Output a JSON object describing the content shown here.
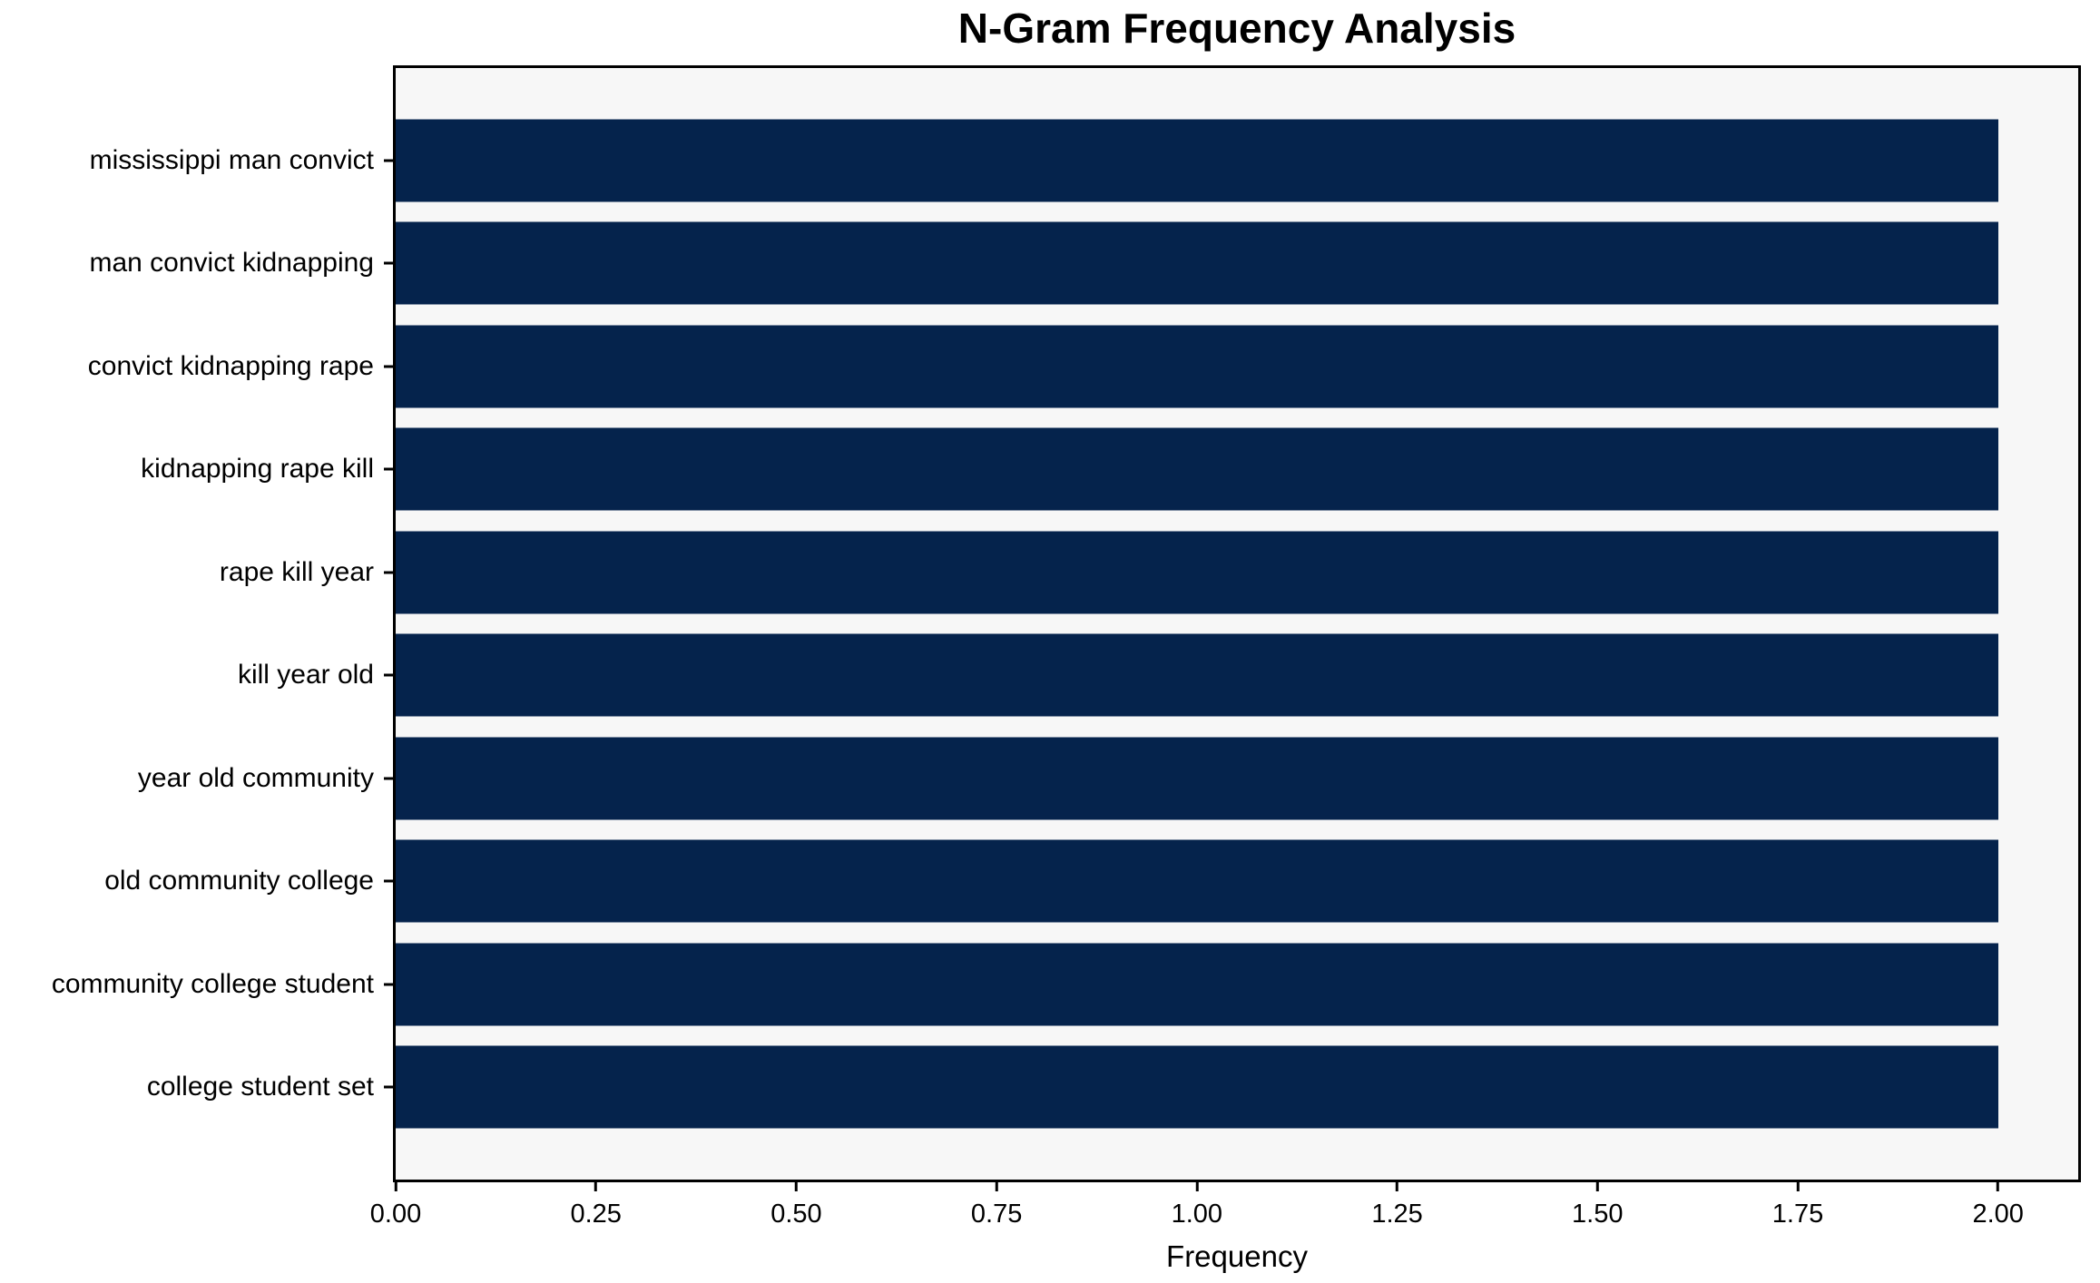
{
  "chart_data": {
    "type": "bar",
    "orientation": "horizontal",
    "title": "N-Gram Frequency Analysis",
    "xlabel": "Frequency",
    "ylabel": "",
    "categories": [
      "mississippi man convict",
      "man convict kidnapping",
      "convict kidnapping rape",
      "kidnapping rape kill",
      "rape kill year",
      "kill year old",
      "year old community",
      "old community college",
      "community college student",
      "college student set"
    ],
    "values": [
      2,
      2,
      2,
      2,
      2,
      2,
      2,
      2,
      2,
      2
    ],
    "xlim": [
      0,
      2.1
    ],
    "xticks": [
      {
        "value": 0.0,
        "label": "0.00"
      },
      {
        "value": 0.25,
        "label": "0.25"
      },
      {
        "value": 0.5,
        "label": "0.50"
      },
      {
        "value": 0.75,
        "label": "0.75"
      },
      {
        "value": 1.0,
        "label": "1.00"
      },
      {
        "value": 1.25,
        "label": "1.25"
      },
      {
        "value": 1.5,
        "label": "1.50"
      },
      {
        "value": 1.75,
        "label": "1.75"
      },
      {
        "value": 2.0,
        "label": "2.00"
      }
    ],
    "grid": false,
    "legend": null,
    "colors": {
      "bar": "#05234c",
      "plot_background": "#f7f7f7",
      "figure_background": "#ffffff",
      "spine": "#000000",
      "text": "#000000"
    }
  }
}
